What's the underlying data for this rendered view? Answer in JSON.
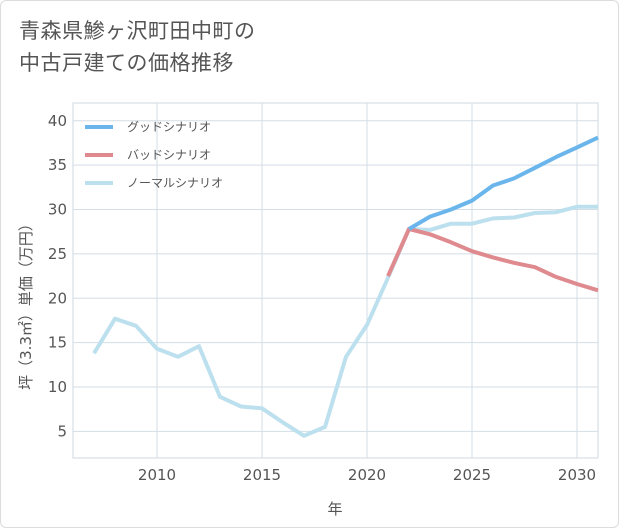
{
  "title": {
    "line1": "青森県鯵ヶ沢町田中町の",
    "line2": "中古戸建ての価格推移"
  },
  "chart_data": {
    "type": "line",
    "xlabel": "年",
    "ylabel": "坪（3.3㎡）単価（万円）",
    "xlim": [
      2006,
      2031
    ],
    "ylim": [
      2,
      42
    ],
    "xticks": [
      2010,
      2015,
      2020,
      2025,
      2030
    ],
    "yticks": [
      5,
      10,
      15,
      20,
      25,
      30,
      35,
      40
    ],
    "grid": true,
    "legend_position": "top-left",
    "series": [
      {
        "name": "グッドシナリオ",
        "color": "#6ab6ec",
        "x": [
          2022,
          2023,
          2024,
          2025,
          2026,
          2027,
          2028,
          2029,
          2030,
          2031
        ],
        "y": [
          27.8,
          29.2,
          30.0,
          31.0,
          32.7,
          33.5,
          34.7,
          35.9,
          37.0,
          38.1
        ]
      },
      {
        "name": "バッドシナリオ",
        "color": "#df8a8f",
        "x": [
          2021,
          2022,
          2023,
          2024,
          2025,
          2026,
          2027,
          2028,
          2029,
          2030,
          2031
        ],
        "y": [
          22.5,
          27.8,
          27.2,
          26.3,
          25.3,
          24.6,
          24.0,
          23.5,
          22.4,
          21.6,
          20.9
        ]
      },
      {
        "name": "ノーマルシナリオ",
        "color": "#bde0ee",
        "x": [
          2007,
          2008,
          2009,
          2010,
          2011,
          2012,
          2013,
          2014,
          2015,
          2016,
          2017,
          2018,
          2019,
          2020,
          2021,
          2022,
          2023,
          2024,
          2025,
          2026,
          2027,
          2028,
          2029,
          2030,
          2031
        ],
        "y": [
          13.8,
          17.7,
          16.9,
          14.3,
          13.4,
          14.6,
          8.9,
          7.8,
          7.6,
          6.0,
          4.5,
          5.5,
          13.4,
          17.0,
          22.3,
          27.8,
          27.7,
          28.4,
          28.4,
          29.0,
          29.1,
          29.6,
          29.7,
          30.3,
          30.3
        ]
      }
    ]
  }
}
